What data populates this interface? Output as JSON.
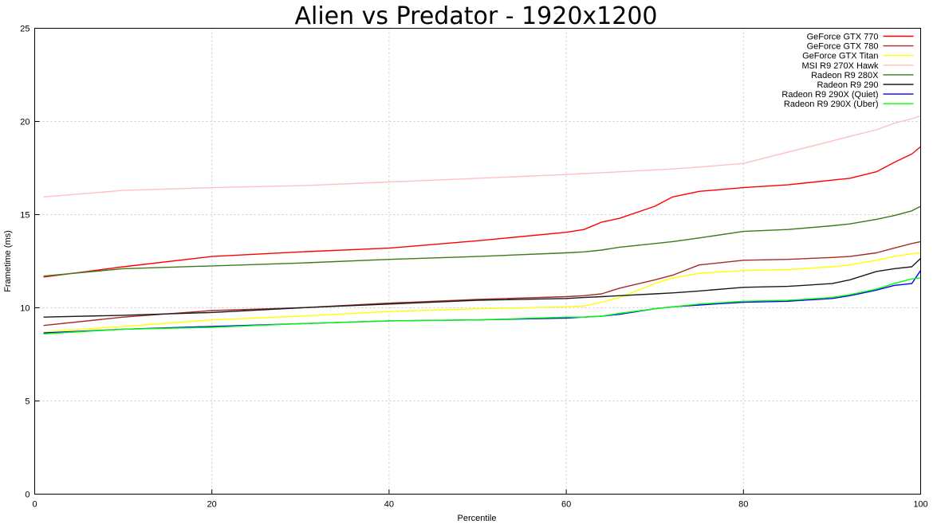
{
  "chart_data": {
    "type": "line",
    "title": "Alien vs Predator - 1920x1200",
    "xlabel": "Percentile",
    "ylabel": "Frametime (ms)",
    "xlim": [
      0,
      100
    ],
    "ylim": [
      0,
      25
    ],
    "xticks": [
      0,
      20,
      40,
      60,
      80,
      100
    ],
    "yticks": [
      0,
      5,
      10,
      15,
      20,
      25
    ],
    "grid": true,
    "legend_position": "top-right",
    "x": [
      1,
      10,
      20,
      30,
      40,
      50,
      60,
      62,
      64,
      66,
      70,
      72,
      75,
      80,
      85,
      90,
      92,
      95,
      97,
      99,
      100
    ],
    "series": [
      {
        "name": "GeForce GTX 770",
        "color": "#ff0000",
        "values": [
          11.65,
          12.2,
          12.75,
          13.0,
          13.2,
          13.6,
          14.05,
          14.2,
          14.6,
          14.8,
          15.45,
          15.95,
          16.25,
          16.45,
          16.6,
          16.85,
          16.95,
          17.3,
          17.8,
          18.25,
          18.65
        ]
      },
      {
        "name": "GeForce GTX 780",
        "color": "#a52a2a",
        "values": [
          9.05,
          9.5,
          9.85,
          10.0,
          10.25,
          10.45,
          10.6,
          10.65,
          10.75,
          11.05,
          11.5,
          11.75,
          12.3,
          12.55,
          12.6,
          12.7,
          12.75,
          12.95,
          13.2,
          13.45,
          13.55
        ]
      },
      {
        "name": "GeForce GTX Titan",
        "color": "#ffff00",
        "values": [
          8.7,
          9.0,
          9.35,
          9.55,
          9.8,
          9.95,
          10.05,
          10.1,
          10.3,
          10.55,
          11.3,
          11.6,
          11.85,
          12.0,
          12.05,
          12.2,
          12.3,
          12.55,
          12.75,
          12.9,
          12.95
        ]
      },
      {
        "name": "MSI R9 270X Hawk",
        "color": "#ffc0c0",
        "values": [
          15.95,
          16.3,
          16.45,
          16.55,
          16.75,
          16.95,
          17.15,
          17.2,
          17.25,
          17.3,
          17.4,
          17.45,
          17.55,
          17.75,
          18.35,
          18.95,
          19.2,
          19.55,
          19.9,
          20.15,
          20.3
        ]
      },
      {
        "name": "Radeon R9 280X",
        "color": "#3a7a1a",
        "values": [
          11.7,
          12.1,
          12.25,
          12.4,
          12.6,
          12.75,
          12.95,
          13.0,
          13.1,
          13.25,
          13.45,
          13.55,
          13.75,
          14.1,
          14.2,
          14.4,
          14.5,
          14.75,
          14.95,
          15.2,
          15.45
        ]
      },
      {
        "name": "Radeon R9 290",
        "color": "#1a1a1a",
        "values": [
          9.5,
          9.6,
          9.75,
          10.0,
          10.2,
          10.4,
          10.5,
          10.55,
          10.6,
          10.65,
          10.75,
          10.8,
          10.9,
          11.1,
          11.15,
          11.3,
          11.5,
          11.95,
          12.1,
          12.2,
          12.65
        ]
      },
      {
        "name": "Radeon R9 290X (Quiet)",
        "color": "#0000ff",
        "values": [
          8.65,
          8.85,
          9.0,
          9.15,
          9.3,
          9.35,
          9.45,
          9.5,
          9.55,
          9.65,
          9.95,
          10.05,
          10.15,
          10.3,
          10.35,
          10.5,
          10.65,
          10.95,
          11.2,
          11.3,
          12.0
        ]
      },
      {
        "name": "Radeon R9 290X (Uber)",
        "color": "#00ff00",
        "values": [
          8.6,
          8.85,
          8.95,
          9.15,
          9.3,
          9.35,
          9.5,
          9.5,
          9.55,
          9.7,
          9.95,
          10.05,
          10.2,
          10.35,
          10.4,
          10.55,
          10.7,
          11.0,
          11.3,
          11.55,
          11.6
        ]
      }
    ]
  }
}
